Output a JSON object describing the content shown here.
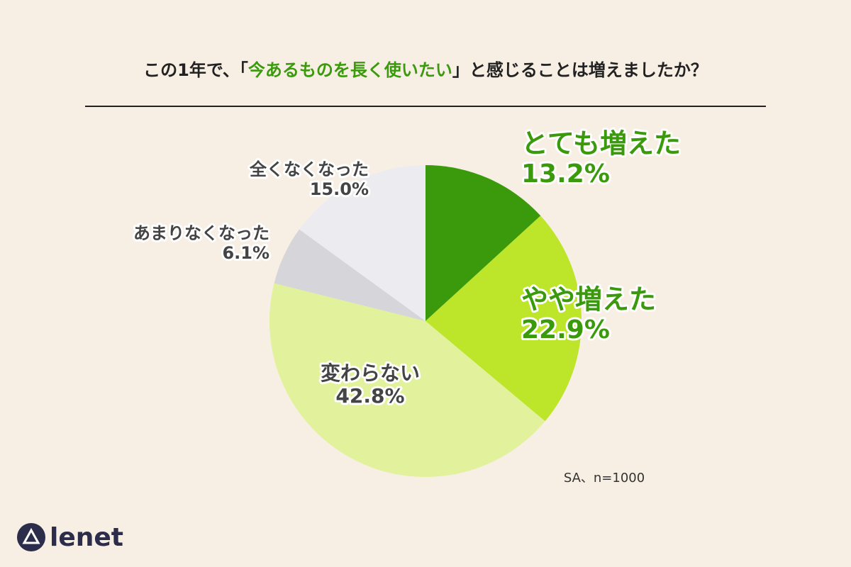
{
  "chart_data": {
    "type": "pie",
    "title": [
      "この1年で、「",
      "今あるものを長く使いたい",
      "」と感じることは増えましたか？"
    ],
    "categories": [
      "とても増えた",
      "やや増えた",
      "変わらない",
      "あまりなくなった",
      "全くなくなった"
    ],
    "values": [
      13.2,
      22.9,
      42.8,
      6.1,
      15.0
    ],
    "value_labels": [
      "13.2%",
      "22.9%",
      "42.8%",
      "6.1%",
      "15.0%"
    ],
    "colors": [
      "#3a9a0c",
      "#bde52a",
      "#e2f29c",
      "#d6d5da",
      "#ecebf0"
    ],
    "note": "SA、n=1000"
  },
  "logo": "lenet"
}
